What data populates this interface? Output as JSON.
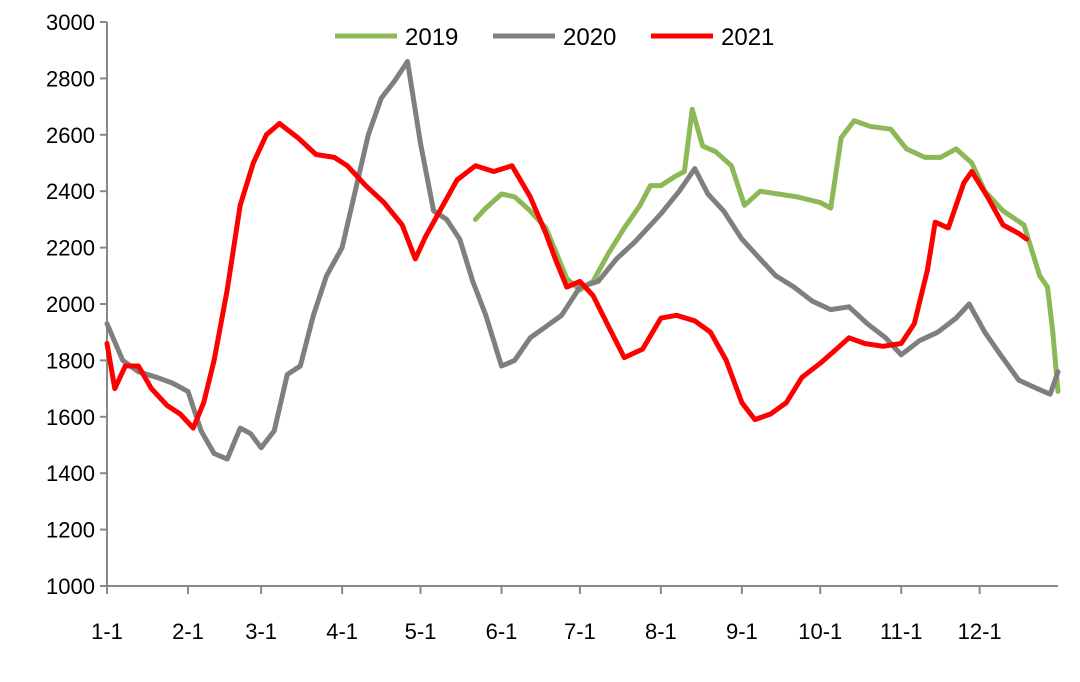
{
  "chart_data": {
    "type": "line",
    "title": "",
    "xlabel": "",
    "ylabel": "",
    "ylim": [
      1000,
      3000
    ],
    "yticks": [
      "1000",
      "1200",
      "1400",
      "1600",
      "1800",
      "2000",
      "2200",
      "2400",
      "2600",
      "2800",
      "3000"
    ],
    "xticks": [
      "1-1",
      "2-1",
      "3-1",
      "4-1",
      "5-1",
      "6-1",
      "7-1",
      "8-1",
      "9-1",
      "10-1",
      "11-1",
      "12-1"
    ],
    "grid": false,
    "legend_position": "top-center",
    "series": [
      {
        "name": "2019",
        "color": "#8db858",
        "points": [
          [
            "5-22",
            2300
          ],
          [
            "5-26",
            2340
          ],
          [
            "6-1",
            2390
          ],
          [
            "6-6",
            2380
          ],
          [
            "6-12",
            2330
          ],
          [
            "6-18",
            2270
          ],
          [
            "6-22",
            2180
          ],
          [
            "6-26",
            2090
          ],
          [
            "7-1",
            2050
          ],
          [
            "7-6",
            2080
          ],
          [
            "7-12",
            2180
          ],
          [
            "7-18",
            2270
          ],
          [
            "7-24",
            2350
          ],
          [
            "7-28",
            2420
          ],
          [
            "8-1",
            2420
          ],
          [
            "8-6",
            2450
          ],
          [
            "8-10",
            2470
          ],
          [
            "8-13",
            2690
          ],
          [
            "8-17",
            2560
          ],
          [
            "8-22",
            2540
          ],
          [
            "8-28",
            2490
          ],
          [
            "9-2",
            2350
          ],
          [
            "9-8",
            2400
          ],
          [
            "9-15",
            2390
          ],
          [
            "9-22",
            2380
          ],
          [
            "10-1",
            2360
          ],
          [
            "10-5",
            2340
          ],
          [
            "10-9",
            2590
          ],
          [
            "10-14",
            2650
          ],
          [
            "10-20",
            2630
          ],
          [
            "10-28",
            2620
          ],
          [
            "11-3",
            2550
          ],
          [
            "11-10",
            2520
          ],
          [
            "11-16",
            2520
          ],
          [
            "11-22",
            2550
          ],
          [
            "11-28",
            2500
          ],
          [
            "12-3",
            2400
          ],
          [
            "12-10",
            2330
          ],
          [
            "12-18",
            2280
          ],
          [
            "12-24",
            2100
          ],
          [
            "12-27",
            2060
          ],
          [
            "12-29",
            1900
          ],
          [
            "12-31",
            1690
          ]
        ]
      },
      {
        "name": "2020",
        "color": "#7f7f7f",
        "points": [
          [
            "1-1",
            1930
          ],
          [
            "1-7",
            1800
          ],
          [
            "1-13",
            1760
          ],
          [
            "1-20",
            1740
          ],
          [
            "1-26",
            1720
          ],
          [
            "2-1",
            1690
          ],
          [
            "2-6",
            1550
          ],
          [
            "2-11",
            1470
          ],
          [
            "2-16",
            1450
          ],
          [
            "2-21",
            1560
          ],
          [
            "2-25",
            1540
          ],
          [
            "3-1",
            1490
          ],
          [
            "3-6",
            1550
          ],
          [
            "3-11",
            1750
          ],
          [
            "3-16",
            1780
          ],
          [
            "3-21",
            1960
          ],
          [
            "3-26",
            2100
          ],
          [
            "4-1",
            2200
          ],
          [
            "4-6",
            2400
          ],
          [
            "4-11",
            2600
          ],
          [
            "4-16",
            2730
          ],
          [
            "4-21",
            2790
          ],
          [
            "4-26",
            2860
          ],
          [
            "5-1",
            2570
          ],
          [
            "5-6",
            2330
          ],
          [
            "5-11",
            2300
          ],
          [
            "5-16",
            2230
          ],
          [
            "5-21",
            2080
          ],
          [
            "5-26",
            1960
          ],
          [
            "6-1",
            1780
          ],
          [
            "6-6",
            1800
          ],
          [
            "6-12",
            1880
          ],
          [
            "6-18",
            1920
          ],
          [
            "6-24",
            1960
          ],
          [
            "7-1",
            2060
          ],
          [
            "7-8",
            2080
          ],
          [
            "7-15",
            2160
          ],
          [
            "7-22",
            2220
          ],
          [
            "8-1",
            2320
          ],
          [
            "8-8",
            2400
          ],
          [
            "8-14",
            2480
          ],
          [
            "8-19",
            2390
          ],
          [
            "8-25",
            2330
          ],
          [
            "9-1",
            2230
          ],
          [
            "9-7",
            2170
          ],
          [
            "9-14",
            2100
          ],
          [
            "9-21",
            2060
          ],
          [
            "9-28",
            2010
          ],
          [
            "10-5",
            1980
          ],
          [
            "10-12",
            1990
          ],
          [
            "10-19",
            1930
          ],
          [
            "10-26",
            1880
          ],
          [
            "11-1",
            1820
          ],
          [
            "11-8",
            1870
          ],
          [
            "11-15",
            1900
          ],
          [
            "11-22",
            1950
          ],
          [
            "11-27",
            2000
          ],
          [
            "12-3",
            1900
          ],
          [
            "12-9",
            1820
          ],
          [
            "12-16",
            1730
          ],
          [
            "12-23",
            1700
          ],
          [
            "12-28",
            1680
          ],
          [
            "12-31",
            1760
          ]
        ]
      },
      {
        "name": "2021",
        "color": "#ff0000",
        "points": [
          [
            "1-1",
            1860
          ],
          [
            "1-4",
            1700
          ],
          [
            "1-8",
            1780
          ],
          [
            "1-13",
            1780
          ],
          [
            "1-18",
            1700
          ],
          [
            "1-24",
            1640
          ],
          [
            "1-29",
            1610
          ],
          [
            "2-3",
            1560
          ],
          [
            "2-7",
            1650
          ],
          [
            "2-11",
            1800
          ],
          [
            "2-16",
            2050
          ],
          [
            "2-21",
            2350
          ],
          [
            "2-26",
            2500
          ],
          [
            "3-3",
            2600
          ],
          [
            "3-8",
            2640
          ],
          [
            "3-15",
            2590
          ],
          [
            "3-22",
            2530
          ],
          [
            "3-29",
            2520
          ],
          [
            "4-3",
            2490
          ],
          [
            "4-10",
            2420
          ],
          [
            "4-17",
            2360
          ],
          [
            "4-24",
            2280
          ],
          [
            "4-29",
            2160
          ],
          [
            "5-3",
            2240
          ],
          [
            "5-9",
            2340
          ],
          [
            "5-15",
            2440
          ],
          [
            "5-22",
            2490
          ],
          [
            "5-29",
            2470
          ],
          [
            "6-5",
            2490
          ],
          [
            "6-12",
            2380
          ],
          [
            "6-18",
            2250
          ],
          [
            "6-22",
            2150
          ],
          [
            "6-26",
            2060
          ],
          [
            "7-1",
            2080
          ],
          [
            "7-6",
            2030
          ],
          [
            "7-12",
            1920
          ],
          [
            "7-18",
            1810
          ],
          [
            "7-25",
            1840
          ],
          [
            "8-1",
            1950
          ],
          [
            "8-7",
            1960
          ],
          [
            "8-14",
            1940
          ],
          [
            "8-20",
            1900
          ],
          [
            "8-26",
            1800
          ],
          [
            "9-1",
            1650
          ],
          [
            "9-6",
            1590
          ],
          [
            "9-12",
            1610
          ],
          [
            "9-18",
            1650
          ],
          [
            "9-24",
            1740
          ],
          [
            "10-1",
            1790
          ],
          [
            "10-6",
            1830
          ],
          [
            "10-12",
            1880
          ],
          [
            "10-18",
            1860
          ],
          [
            "10-25",
            1850
          ],
          [
            "11-1",
            1860
          ],
          [
            "11-6",
            1930
          ],
          [
            "11-11",
            2120
          ],
          [
            "11-14",
            2290
          ],
          [
            "11-19",
            2270
          ],
          [
            "11-25",
            2430
          ],
          [
            "11-28",
            2470
          ],
          [
            "12-4",
            2380
          ],
          [
            "12-10",
            2280
          ],
          [
            "12-16",
            2250
          ],
          [
            "12-19",
            2230
          ]
        ]
      }
    ]
  }
}
